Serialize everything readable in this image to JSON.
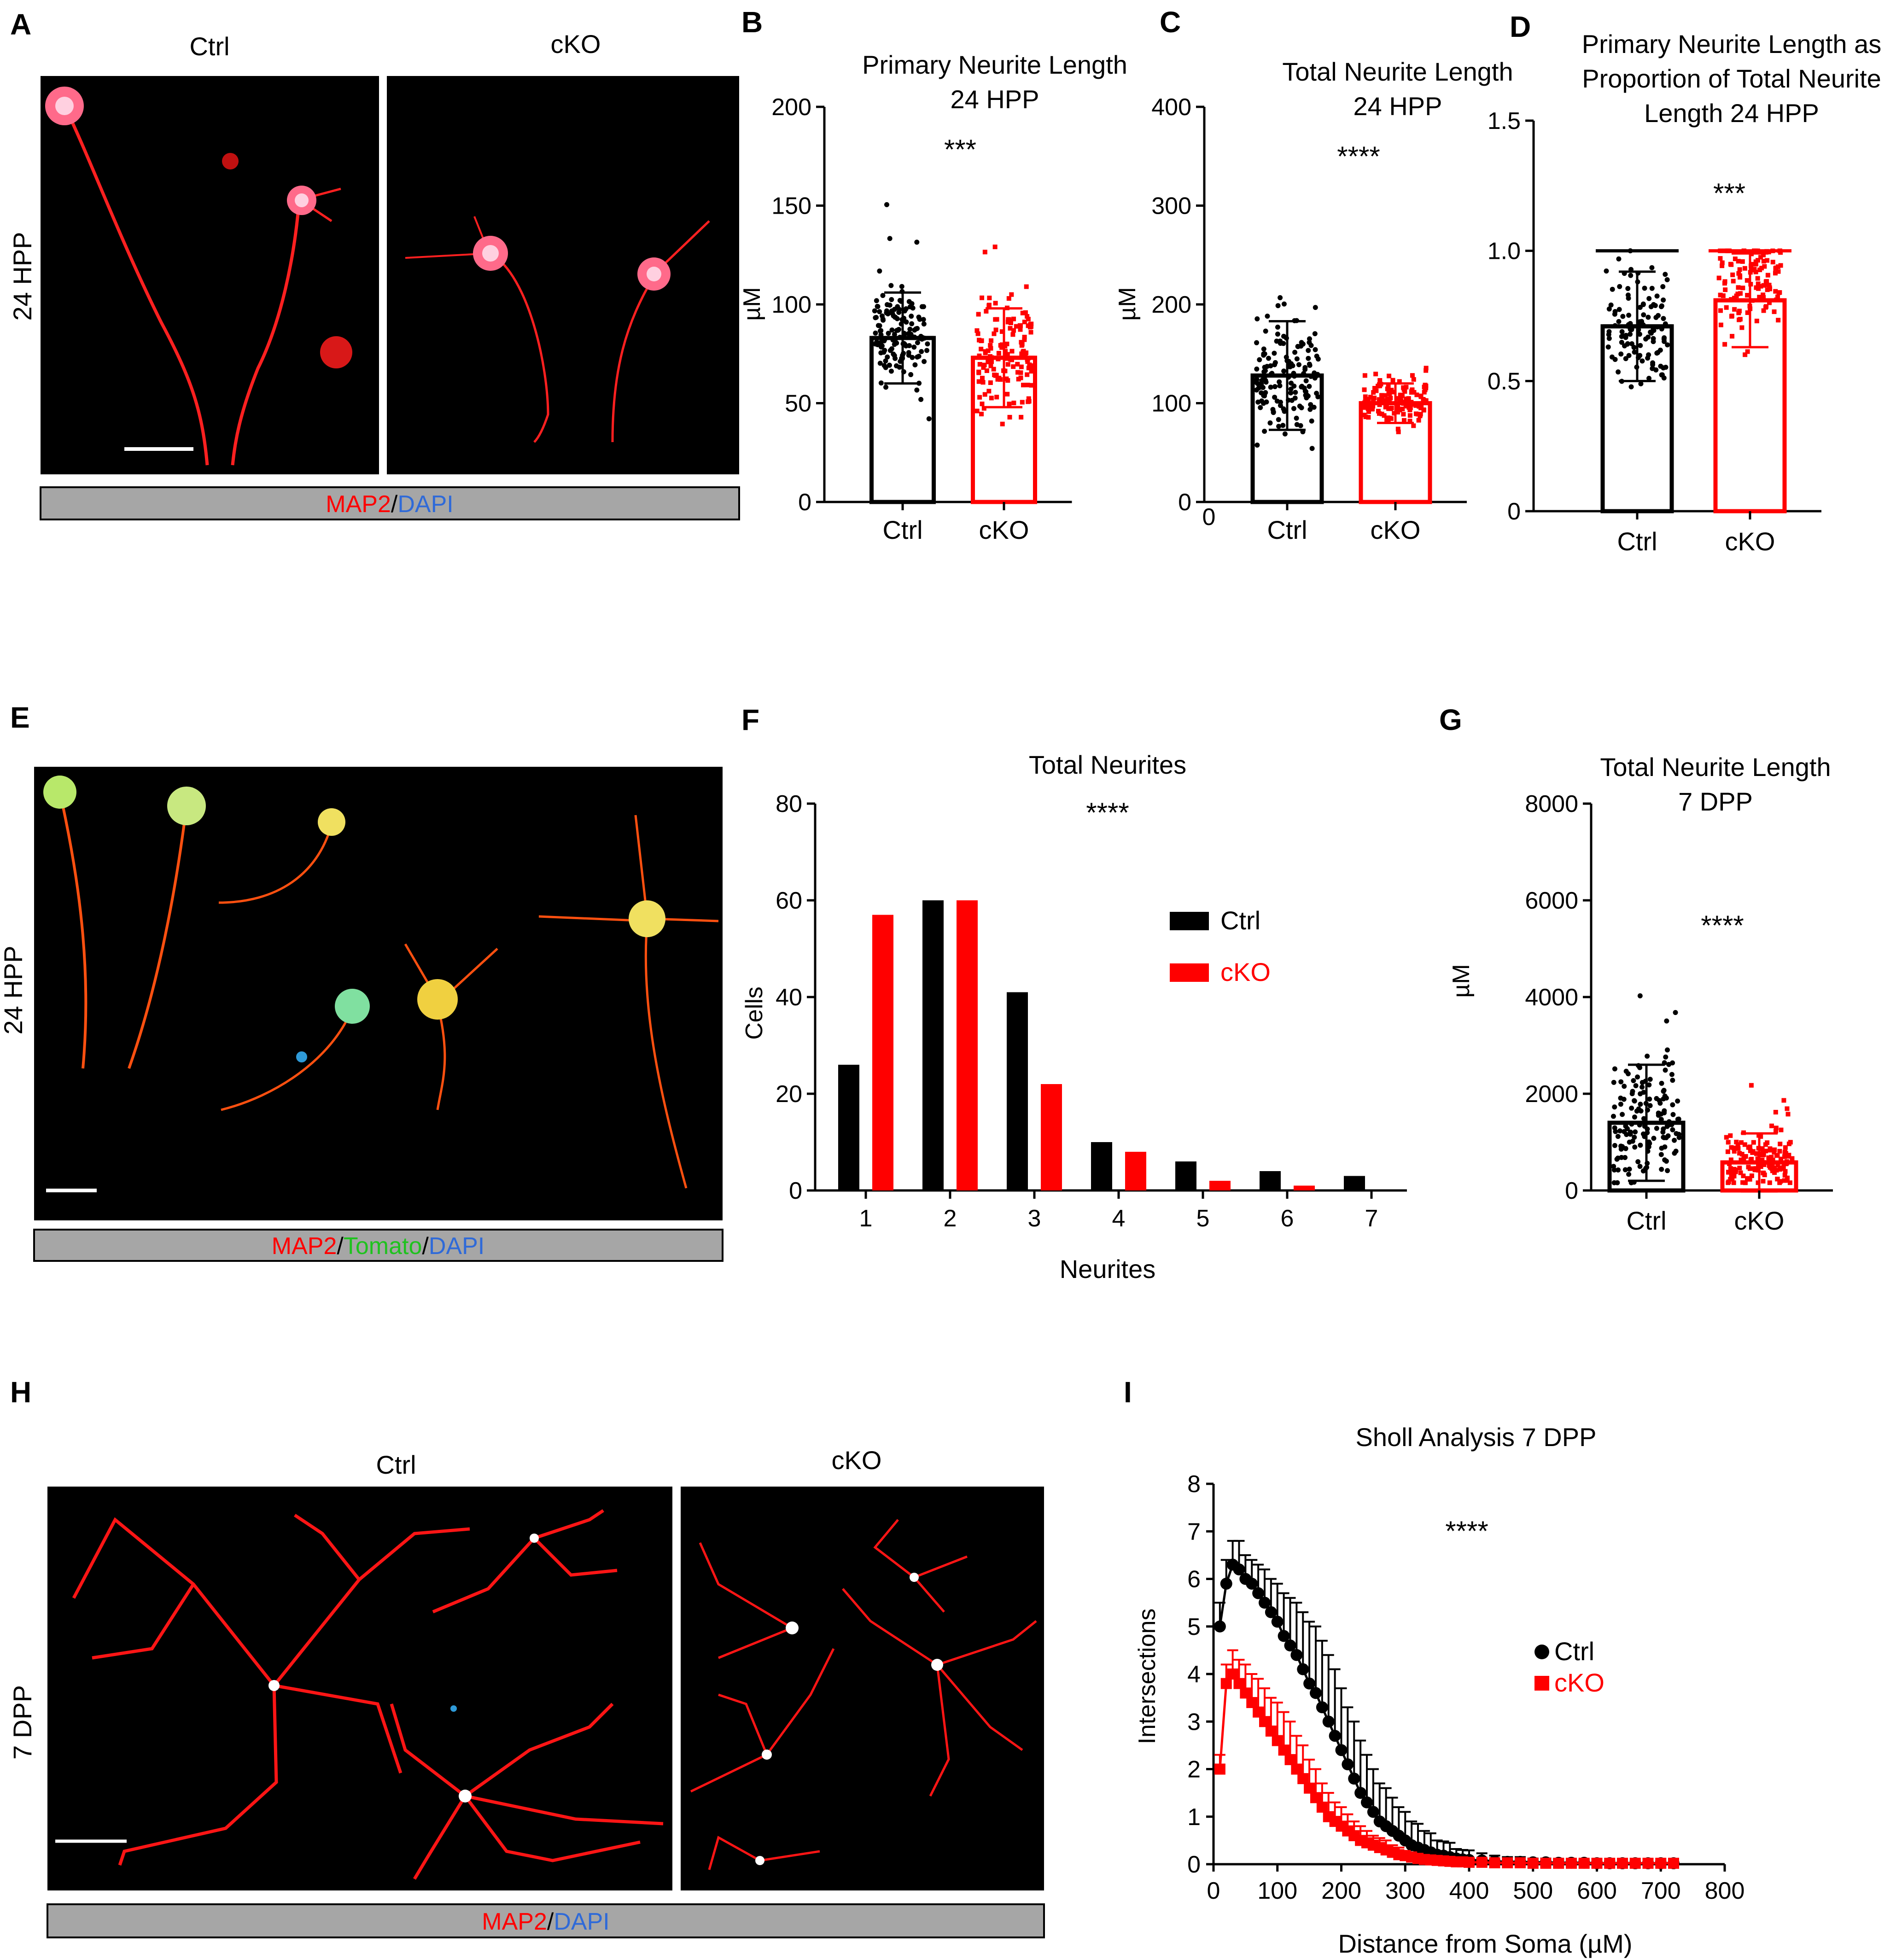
{
  "colors": {
    "ctrl": "#000000",
    "cko": "#ff0000",
    "micro_bg": "#000000",
    "label_bar": "#a6a6a6",
    "dapi": "#2f6ad8",
    "tomato": "#1fc21f",
    "neurite": "#ff2020"
  },
  "panels": {
    "A": {
      "letter": "A",
      "row_label": "24 HPP",
      "col_ctrl": "Ctrl",
      "col_cko": "cKO",
      "stain_parts": [
        "MAP2",
        "/",
        "DAPI"
      ]
    },
    "E": {
      "letter": "E",
      "row_label": "24 HPP",
      "stain_parts": [
        "MAP2",
        "/",
        "Tomato",
        "/",
        "DAPI"
      ]
    },
    "H": {
      "letter": "H",
      "row_label": "7 DPP",
      "col_ctrl": "Ctrl",
      "col_cko": "cKO",
      "stain_parts": [
        "MAP2",
        "/",
        "DAPI"
      ]
    }
  },
  "chart_data": [
    {
      "id": "B",
      "letter": "B",
      "type": "bar",
      "title": [
        "Primary Neurite Length",
        "24 HPP"
      ],
      "ylabel": "µM",
      "ylim": [
        0,
        200
      ],
      "yticks": [
        "0",
        "50",
        "100",
        "150",
        "200"
      ],
      "categories": [
        "Ctrl",
        "cKO"
      ],
      "means": [
        83,
        73
      ],
      "sd": [
        23,
        25
      ],
      "significance": "***"
    },
    {
      "id": "C",
      "letter": "C",
      "type": "bar",
      "title": [
        "Total Neurite Length",
        "24 HPP"
      ],
      "ylabel": "µM",
      "ylim": [
        0,
        400
      ],
      "yticks": [
        "0",
        "100",
        "200",
        "300",
        "400"
      ],
      "categories": [
        "Ctrl",
        "cKO"
      ],
      "means": [
        128,
        100
      ],
      "sd": [
        55,
        20
      ],
      "significance": "****"
    },
    {
      "id": "D",
      "letter": "D",
      "type": "bar",
      "title": [
        "Primary Neurite Length as",
        "Proportion of Total Neurite",
        "Length 24 HPP"
      ],
      "ylabel": "",
      "ylim": [
        0,
        1.5
      ],
      "yticks": [
        "0",
        "0.5",
        "1.0",
        "1.5"
      ],
      "categories": [
        "Ctrl",
        "cKO"
      ],
      "means": [
        0.71,
        0.81
      ],
      "sd": [
        0.21,
        0.18
      ],
      "significance": "***"
    },
    {
      "id": "F",
      "letter": "F",
      "type": "bar",
      "title": "Total Neurites",
      "xlabel": "Neurites",
      "ylabel": "Cells",
      "ylim": [
        0,
        80
      ],
      "yticks": [
        "0",
        "20",
        "40",
        "60",
        "80"
      ],
      "categories": [
        "1",
        "2",
        "3",
        "4",
        "5",
        "6",
        "7"
      ],
      "series": [
        {
          "name": "Ctrl",
          "values": [
            26,
            60,
            41,
            10,
            6,
            4,
            3
          ]
        },
        {
          "name": "cKO",
          "values": [
            57,
            60,
            22,
            8,
            2,
            1,
            0
          ]
        }
      ],
      "significance": "****"
    },
    {
      "id": "G",
      "letter": "G",
      "type": "bar",
      "title": [
        "Total Neurite Length",
        "7 DPP"
      ],
      "ylabel": "µM",
      "ylim": [
        0,
        8000
      ],
      "yticks": [
        "0",
        "2000",
        "4000",
        "6000",
        "8000"
      ],
      "categories": [
        "Ctrl",
        "cKO"
      ],
      "means": [
        1400,
        580
      ],
      "sd": [
        1200,
        600
      ],
      "significance": "****"
    },
    {
      "id": "I",
      "letter": "I",
      "type": "line",
      "title": "Sholl Analysis 7 DPP",
      "xlabel": "Distance  from Soma (µM)",
      "ylabel": "Intersections",
      "xlim": [
        0,
        800
      ],
      "ylim": [
        0,
        8
      ],
      "xticks": [
        "0",
        "100",
        "200",
        "300",
        "400",
        "500",
        "600",
        "700",
        "800"
      ],
      "yticks": [
        "0",
        "1",
        "2",
        "3",
        "4",
        "5",
        "6",
        "7",
        "8"
      ],
      "x": [
        10,
        20,
        30,
        40,
        50,
        60,
        70,
        80,
        90,
        100,
        110,
        120,
        130,
        140,
        150,
        160,
        170,
        180,
        190,
        200,
        210,
        220,
        230,
        240,
        250,
        260,
        270,
        280,
        290,
        300,
        310,
        320,
        330,
        340,
        350,
        360,
        370,
        380,
        390,
        400,
        420,
        440,
        460,
        480,
        500,
        520,
        540,
        560,
        580,
        600,
        620,
        640,
        660,
        680,
        700,
        720
      ],
      "series": [
        {
          "name": "Ctrl",
          "values": [
            5.0,
            5.9,
            6.3,
            6.2,
            6.0,
            5.9,
            5.7,
            5.5,
            5.3,
            5.1,
            4.8,
            4.6,
            4.4,
            4.1,
            3.8,
            3.6,
            3.3,
            3.0,
            2.7,
            2.4,
            2.1,
            1.8,
            1.5,
            1.3,
            1.1,
            0.9,
            0.8,
            0.7,
            0.6,
            0.5,
            0.4,
            0.35,
            0.3,
            0.25,
            0.2,
            0.18,
            0.15,
            0.12,
            0.1,
            0.09,
            0.08,
            0.06,
            0.05,
            0.05,
            0.04,
            0.04,
            0.03,
            0.03,
            0.03,
            0.02,
            0.02,
            0.02,
            0.02,
            0.02,
            0.02,
            0.02
          ],
          "error": [
            0.5,
            0.5,
            0.5,
            0.6,
            0.5,
            0.5,
            0.6,
            0.7,
            0.7,
            0.8,
            0.9,
            1.0,
            1.1,
            1.2,
            1.3,
            1.4,
            1.4,
            1.4,
            1.4,
            1.3,
            1.2,
            1.2,
            1.1,
            1.0,
            0.9,
            0.8,
            0.8,
            0.7,
            0.6,
            0.6,
            0.5,
            0.5,
            0.4,
            0.4,
            0.3,
            0.3,
            0.3,
            0.2,
            0.2,
            0.2,
            0.15,
            0.12,
            0.1,
            0.1,
            0.08,
            0.08,
            0.07,
            0.06,
            0.06,
            0.05,
            0.05,
            0.04,
            0.04,
            0.04,
            0.04,
            0.04
          ]
        },
        {
          "name": "cKO",
          "values": [
            2.0,
            3.8,
            4.0,
            3.8,
            3.6,
            3.4,
            3.2,
            3.0,
            2.8,
            2.6,
            2.4,
            2.2,
            2.0,
            1.8,
            1.6,
            1.4,
            1.2,
            1.0,
            0.9,
            0.8,
            0.7,
            0.6,
            0.5,
            0.45,
            0.4,
            0.35,
            0.3,
            0.25,
            0.2,
            0.18,
            0.15,
            0.12,
            0.1,
            0.09,
            0.08,
            0.07,
            0.06,
            0.05,
            0.05,
            0.04,
            0.04,
            0.03,
            0.03,
            0.03,
            0.02,
            0.02,
            0.02,
            0.02,
            0.02,
            0.02,
            0.02,
            0.02,
            0.02,
            0.02,
            0.02,
            0.02
          ],
          "error": [
            0.3,
            0.4,
            0.5,
            0.5,
            0.6,
            0.6,
            0.7,
            0.7,
            0.7,
            0.8,
            0.8,
            0.8,
            0.7,
            0.7,
            0.6,
            0.6,
            0.5,
            0.5,
            0.4,
            0.4,
            0.35,
            0.3,
            0.3,
            0.25,
            0.2,
            0.2,
            0.2,
            0.15,
            0.15,
            0.1,
            0.1,
            0.1,
            0.08,
            0.08,
            0.07,
            0.06,
            0.05,
            0.05,
            0.04,
            0.04,
            0.04,
            0.03,
            0.03,
            0.03,
            0.03,
            0.03,
            0.02,
            0.02,
            0.02,
            0.02,
            0.02,
            0.02,
            0.02,
            0.02,
            0.02,
            0.02
          ]
        }
      ],
      "significance": "****"
    }
  ]
}
